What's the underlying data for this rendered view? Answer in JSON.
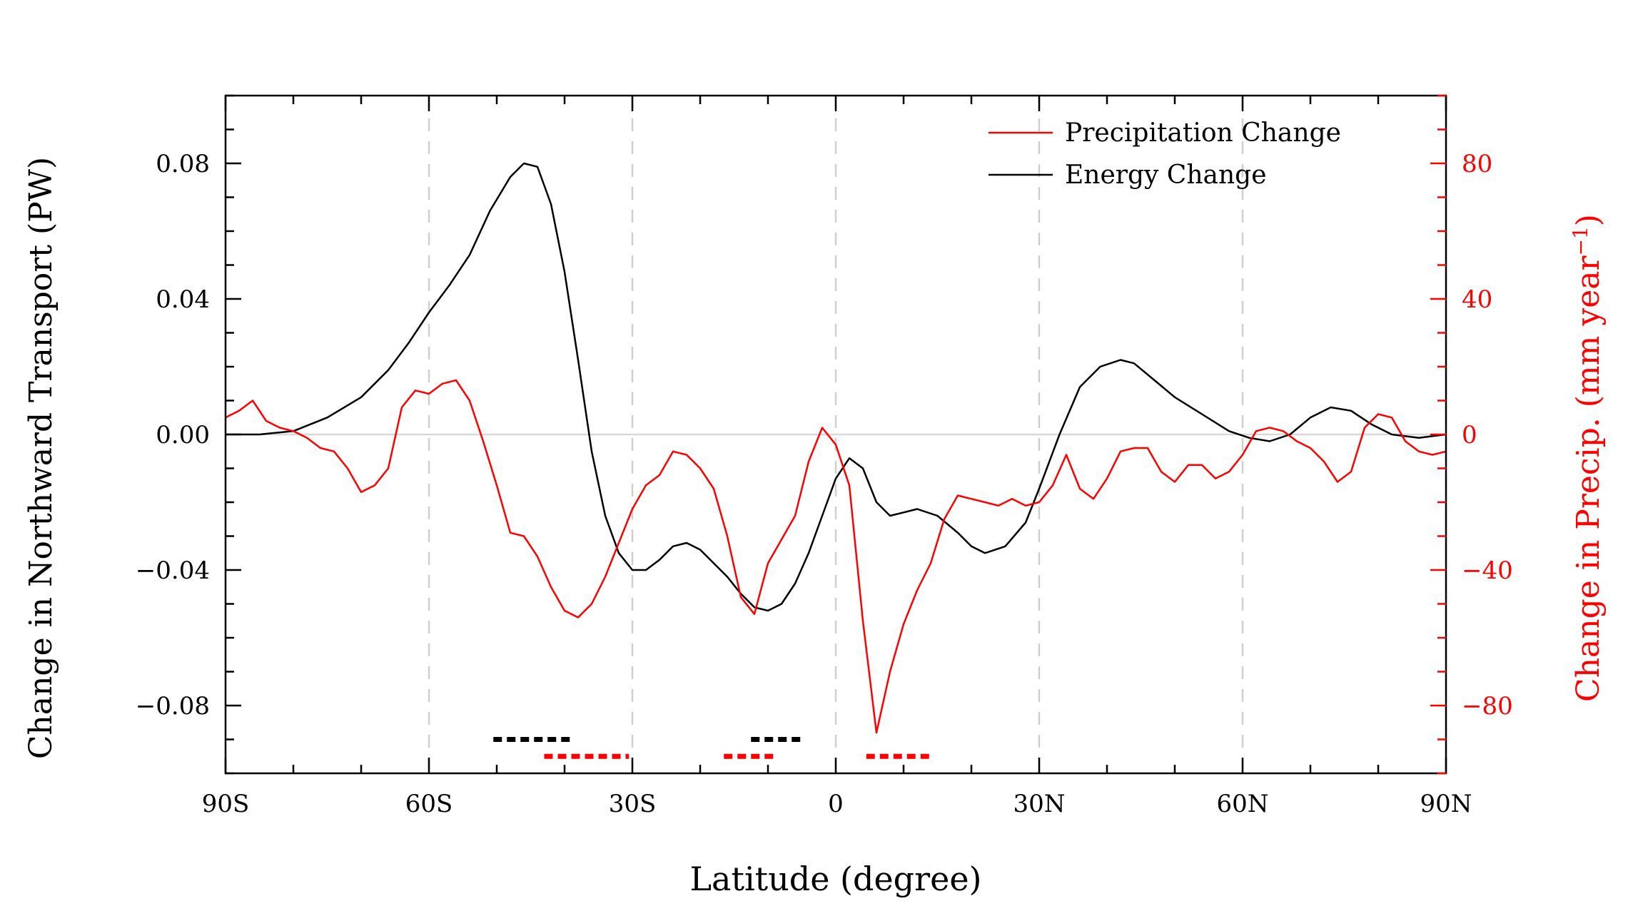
{
  "chart_data": {
    "type": "line",
    "xlabel": "Latitude (degree)",
    "ylabel_left": "Change in Northward Transport (PW)",
    "ylabel_right": "Change in Precip. (mm year",
    "ylabel_right_sup": "−1",
    "ylabel_right_close": ")",
    "xlim": [
      -90,
      90
    ],
    "ylim_left": [
      -0.1,
      0.1
    ],
    "ylim_right": [
      -100,
      100
    ],
    "x_ticks": [
      {
        "value": -90,
        "label": "90S"
      },
      {
        "value": -60,
        "label": "60S"
      },
      {
        "value": -30,
        "label": "30S"
      },
      {
        "value": 0,
        "label": "0"
      },
      {
        "value": 30,
        "label": "30N"
      },
      {
        "value": 60,
        "label": "60N"
      },
      {
        "value": 90,
        "label": "90N"
      }
    ],
    "y_left_ticks": [
      {
        "value": 0.08,
        "label": "0.08"
      },
      {
        "value": 0.04,
        "label": "0.04"
      },
      {
        "value": 0.0,
        "label": "0.00"
      },
      {
        "value": -0.04,
        "label": "−0.04"
      },
      {
        "value": -0.08,
        "label": "−0.08"
      }
    ],
    "y_right_ticks": [
      {
        "value": 80,
        "label": "80"
      },
      {
        "value": 40,
        "label": "40"
      },
      {
        "value": 0,
        "label": "0"
      },
      {
        "value": -40,
        "label": "−40"
      },
      {
        "value": -80,
        "label": "−80"
      }
    ],
    "legend": {
      "position": "top-right",
      "entries": [
        {
          "label": "Precipitation Change",
          "color": "#ff0000"
        },
        {
          "label": "Energy Change",
          "color": "#000000"
        }
      ]
    },
    "series": [
      {
        "name": "Energy Change",
        "axis": "left",
        "color": "#000000",
        "x": [
          -90,
          -85,
          -80,
          -75,
          -70,
          -66,
          -63,
          -60,
          -57,
          -54,
          -51,
          -48,
          -46,
          -44,
          -42,
          -40,
          -38,
          -36,
          -34,
          -32,
          -30,
          -28,
          -26,
          -24,
          -22,
          -20,
          -18,
          -16,
          -14,
          -12,
          -10,
          -8,
          -6,
          -4,
          -2,
          0,
          2,
          4,
          6,
          8,
          10,
          12,
          15,
          18,
          20,
          22,
          25,
          28,
          30,
          33,
          36,
          39,
          42,
          44,
          47,
          50,
          54,
          58,
          61,
          64,
          67,
          70,
          73,
          76,
          79,
          82,
          86,
          90
        ],
        "values": [
          0.0,
          0.0,
          0.001,
          0.005,
          0.011,
          0.019,
          0.027,
          0.036,
          0.044,
          0.053,
          0.066,
          0.076,
          0.08,
          0.079,
          0.068,
          0.048,
          0.022,
          -0.005,
          -0.024,
          -0.035,
          -0.04,
          -0.04,
          -0.037,
          -0.033,
          -0.032,
          -0.034,
          -0.038,
          -0.042,
          -0.047,
          -0.051,
          -0.052,
          -0.05,
          -0.044,
          -0.035,
          -0.024,
          -0.013,
          -0.007,
          -0.01,
          -0.02,
          -0.024,
          -0.023,
          -0.022,
          -0.024,
          -0.029,
          -0.033,
          -0.035,
          -0.033,
          -0.026,
          -0.016,
          0.0,
          0.014,
          0.02,
          0.022,
          0.021,
          0.016,
          0.011,
          0.006,
          0.001,
          -0.001,
          -0.002,
          0.0,
          0.005,
          0.008,
          0.007,
          0.003,
          0.0,
          -0.001,
          0.0
        ]
      },
      {
        "name": "Precipitation Change",
        "axis": "right",
        "color": "#ff0000",
        "x": [
          -90,
          -88,
          -86,
          -84,
          -82,
          -80,
          -78,
          -76,
          -74,
          -72,
          -70,
          -68,
          -66,
          -64,
          -62,
          -60,
          -58,
          -56,
          -54,
          -52,
          -50,
          -48,
          -46,
          -44,
          -42,
          -40,
          -38,
          -36,
          -34,
          -32,
          -30,
          -28,
          -26,
          -24,
          -22,
          -20,
          -18,
          -16,
          -14,
          -12,
          -10,
          -8,
          -6,
          -4,
          -2,
          0,
          2,
          4,
          6,
          8,
          10,
          12,
          14,
          16,
          18,
          20,
          22,
          24,
          26,
          28,
          30,
          32,
          34,
          36,
          38,
          40,
          42,
          44,
          46,
          48,
          50,
          52,
          54,
          56,
          58,
          60,
          62,
          64,
          66,
          68,
          70,
          72,
          74,
          76,
          78,
          80,
          82,
          84,
          86,
          88,
          90
        ],
        "values": [
          5,
          7,
          10,
          4,
          2,
          1,
          -1,
          -4,
          -5,
          -10,
          -17,
          -15,
          -10,
          8,
          13,
          12,
          15,
          16,
          10,
          -2,
          -15,
          -29,
          -30,
          -36,
          -45,
          -52,
          -54,
          -50,
          -42,
          -32,
          -22,
          -15,
          -12,
          -5,
          -6,
          -10,
          -16,
          -30,
          -48,
          -53,
          -38,
          -31,
          -24,
          -8,
          2,
          -3,
          -15,
          -55,
          -88,
          -70,
          -56,
          -46,
          -38,
          -25,
          -18,
          -19,
          -20,
          -21,
          -19,
          -21,
          -20,
          -15,
          -6,
          -16,
          -19,
          -13,
          -5,
          -4,
          -4,
          -11,
          -14,
          -9,
          -9,
          -13,
          -11,
          -6,
          1,
          2,
          1,
          -2,
          -4,
          -8,
          -14,
          -11,
          2,
          6,
          5,
          -2,
          -5,
          -6,
          -5
        ]
      }
    ],
    "significance_bars": [
      {
        "color": "#000000",
        "x_start": -50.5,
        "x_end": -38.5,
        "level": -0.09
      },
      {
        "color": "#000000",
        "x_start": -12.5,
        "x_end": -4.5,
        "level": -0.09
      },
      {
        "color": "#ff0000",
        "x_start": -43.0,
        "x_end": -30.5,
        "level": -0.095
      },
      {
        "color": "#ff0000",
        "x_start": -16.5,
        "x_end": -8.5,
        "level": -0.095
      },
      {
        "color": "#ff0000",
        "x_start": 4.5,
        "x_end": 14.5,
        "level": -0.095
      }
    ]
  }
}
